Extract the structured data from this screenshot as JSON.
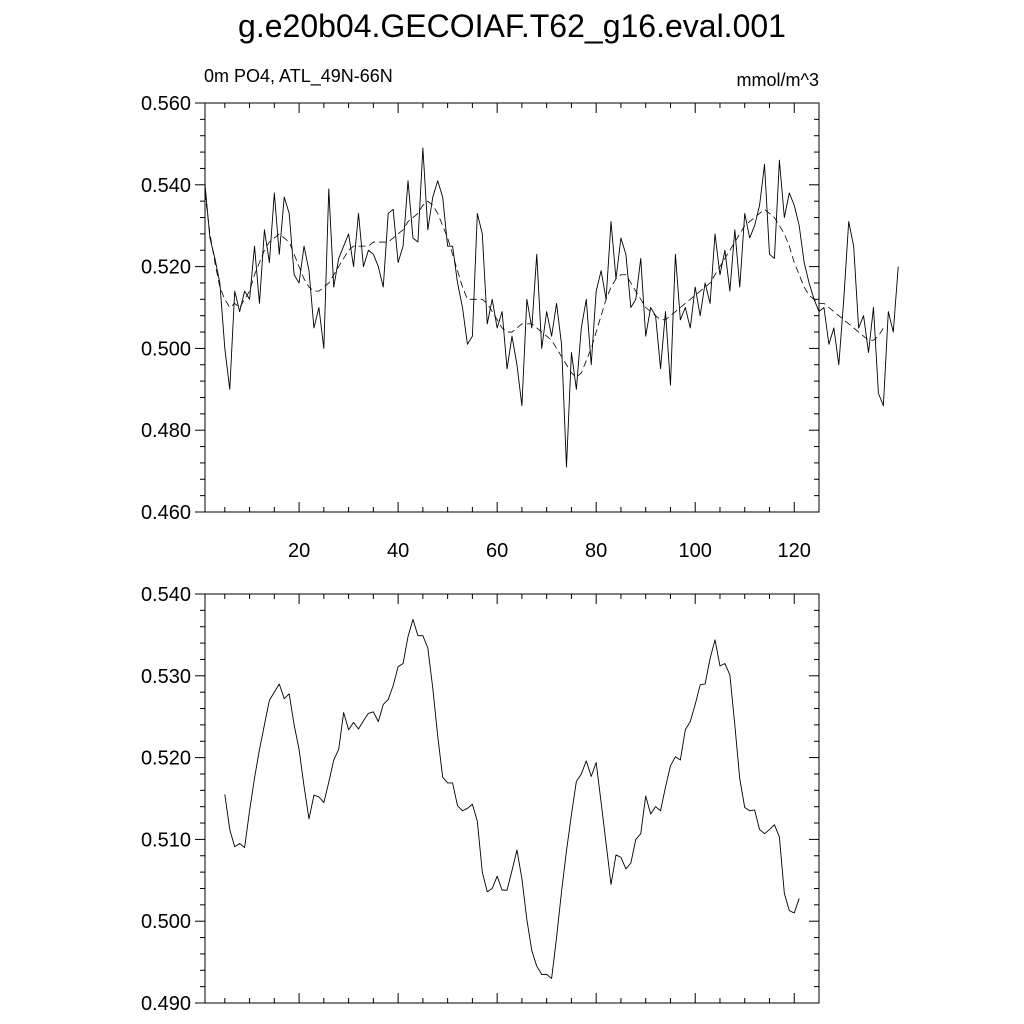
{
  "title": "g.e20b04.GECOIAF.T62_g16.eval.001",
  "subtitle": "0m PO4, ATL_49N-66N",
  "units": "mmol/m^3",
  "chart_data": [
    {
      "type": "line",
      "xlim": [
        1,
        125
      ],
      "ylim": [
        0.46,
        0.56
      ],
      "xticks": [
        20,
        40,
        60,
        80,
        100,
        120
      ],
      "yticks": [
        0.46,
        0.48,
        0.5,
        0.52,
        0.54,
        0.56
      ],
      "ytick_labels": [
        "0.460",
        "0.480",
        "0.500",
        "0.520",
        "0.540",
        "0.560"
      ],
      "x_start": 1,
      "series": [
        {
          "style": "solid",
          "values": [
            0.54,
            0.527,
            0.522,
            0.516,
            0.5,
            0.49,
            0.514,
            0.509,
            0.514,
            0.512,
            0.525,
            0.511,
            0.529,
            0.521,
            0.538,
            0.523,
            0.537,
            0.533,
            0.518,
            0.516,
            0.525,
            0.519,
            0.505,
            0.51,
            0.5,
            0.539,
            0.515,
            0.522,
            0.525,
            0.528,
            0.52,
            0.533,
            0.52,
            0.524,
            0.523,
            0.52,
            0.515,
            0.533,
            0.534,
            0.521,
            0.525,
            0.541,
            0.527,
            0.526,
            0.549,
            0.529,
            0.537,
            0.541,
            0.537,
            0.525,
            0.525,
            0.516,
            0.51,
            0.501,
            0.503,
            0.533,
            0.528,
            0.506,
            0.512,
            0.505,
            0.509,
            0.495,
            0.503,
            0.496,
            0.486,
            0.512,
            0.505,
            0.523,
            0.5,
            0.509,
            0.503,
            0.511,
            0.501,
            0.471,
            0.499,
            0.49,
            0.505,
            0.512,
            0.496,
            0.514,
            0.519,
            0.512,
            0.531,
            0.517,
            0.527,
            0.523,
            0.51,
            0.512,
            0.522,
            0.503,
            0.51,
            0.508,
            0.495,
            0.509,
            0.491,
            0.523,
            0.507,
            0.51,
            0.505,
            0.515,
            0.508,
            0.516,
            0.511,
            0.528,
            0.518,
            0.524,
            0.514,
            0.529,
            0.515,
            0.533,
            0.527,
            0.53,
            0.535,
            0.545,
            0.523,
            0.522,
            0.546,
            0.532,
            0.538,
            0.535,
            0.53,
            0.521,
            0.516,
            0.512,
            0.509,
            0.51,
            0.501,
            0.505,
            0.496,
            0.512,
            0.531,
            0.525,
            0.505,
            0.508,
            0.499,
            0.51,
            0.489,
            0.486,
            0.509,
            0.504,
            0.52
          ]
        },
        {
          "style": "dashed",
          "values": [
            0.538,
            0.528,
            0.521,
            0.515,
            0.512,
            0.51,
            0.511,
            0.51,
            0.512,
            0.514,
            0.518,
            0.521,
            0.524,
            0.526,
            0.527,
            0.528,
            0.527,
            0.526,
            0.523,
            0.52,
            0.517,
            0.515,
            0.514,
            0.514,
            0.515,
            0.516,
            0.518,
            0.52,
            0.522,
            0.524,
            0.525,
            0.525,
            0.525,
            0.525,
            0.526,
            0.526,
            0.526,
            0.526,
            0.527,
            0.528,
            0.529,
            0.531,
            0.532,
            0.533,
            0.535,
            0.536,
            0.535,
            0.533,
            0.53,
            0.527,
            0.523,
            0.519,
            0.515,
            0.512,
            0.512,
            0.512,
            0.512,
            0.511,
            0.509,
            0.507,
            0.505,
            0.504,
            0.504,
            0.505,
            0.506,
            0.506,
            0.506,
            0.505,
            0.504,
            0.503,
            0.502,
            0.5,
            0.498,
            0.496,
            0.494,
            0.493,
            0.494,
            0.497,
            0.5,
            0.504,
            0.508,
            0.512,
            0.515,
            0.517,
            0.518,
            0.518,
            0.516,
            0.514,
            0.512,
            0.51,
            0.509,
            0.508,
            0.507,
            0.507,
            0.508,
            0.509,
            0.51,
            0.511,
            0.512,
            0.513,
            0.514,
            0.515,
            0.516,
            0.518,
            0.52,
            0.522,
            0.524,
            0.526,
            0.528,
            0.53,
            0.531,
            0.532,
            0.533,
            0.534,
            0.533,
            0.532,
            0.53,
            0.528,
            0.525,
            0.521,
            0.518,
            0.515,
            0.513,
            0.512,
            0.511,
            0.511,
            0.51,
            0.509,
            0.508,
            0.507,
            0.506,
            0.505,
            0.504,
            0.503,
            0.502,
            0.502,
            0.503,
            0.505
          ]
        }
      ]
    },
    {
      "type": "line",
      "xlim": [
        1,
        125
      ],
      "ylim": [
        0.49,
        0.54
      ],
      "yticks": [
        0.49,
        0.5,
        0.51,
        0.52,
        0.53,
        0.54
      ],
      "ytick_labels": [
        "0.490",
        "0.500",
        "0.510",
        "0.520",
        "0.530",
        "0.540"
      ],
      "x_start": 5,
      "series": [
        {
          "style": "solid",
          "values": [
            0.5155,
            0.5112,
            0.5091,
            0.5095,
            0.509,
            0.5135,
            0.5175,
            0.521,
            0.524,
            0.527,
            0.528,
            0.529,
            0.5272,
            0.5278,
            0.524,
            0.521,
            0.5165,
            0.5125,
            0.5154,
            0.5152,
            0.5145,
            0.517,
            0.5197,
            0.521,
            0.5255,
            0.5234,
            0.5243,
            0.5235,
            0.5245,
            0.5254,
            0.5256,
            0.5244,
            0.5265,
            0.5271,
            0.5288,
            0.5311,
            0.5315,
            0.5348,
            0.5369,
            0.5349,
            0.5349,
            0.5334,
            0.5285,
            0.5226,
            0.5176,
            0.5169,
            0.5169,
            0.5141,
            0.5135,
            0.5138,
            0.5143,
            0.5122,
            0.506,
            0.5036,
            0.504,
            0.5055,
            0.5038,
            0.5038,
            0.5062,
            0.5087,
            0.5052,
            0.5002,
            0.4964,
            0.4945,
            0.4935,
            0.4935,
            0.493,
            0.498,
            0.5036,
            0.5086,
            0.513,
            0.5171,
            0.518,
            0.5196,
            0.5177,
            0.5194,
            0.5145,
            0.5095,
            0.5045,
            0.5081,
            0.5078,
            0.5064,
            0.5071,
            0.51,
            0.5107,
            0.5153,
            0.5131,
            0.514,
            0.5135,
            0.5164,
            0.519,
            0.5201,
            0.5197,
            0.5234,
            0.5244,
            0.5265,
            0.5289,
            0.529,
            0.5321,
            0.5344,
            0.5312,
            0.5315,
            0.5301,
            0.524,
            0.5174,
            0.5139,
            0.5135,
            0.5136,
            0.5112,
            0.5107,
            0.5112,
            0.5118,
            0.5103,
            0.5034,
            0.5013,
            0.501,
            0.5028
          ]
        }
      ]
    }
  ]
}
